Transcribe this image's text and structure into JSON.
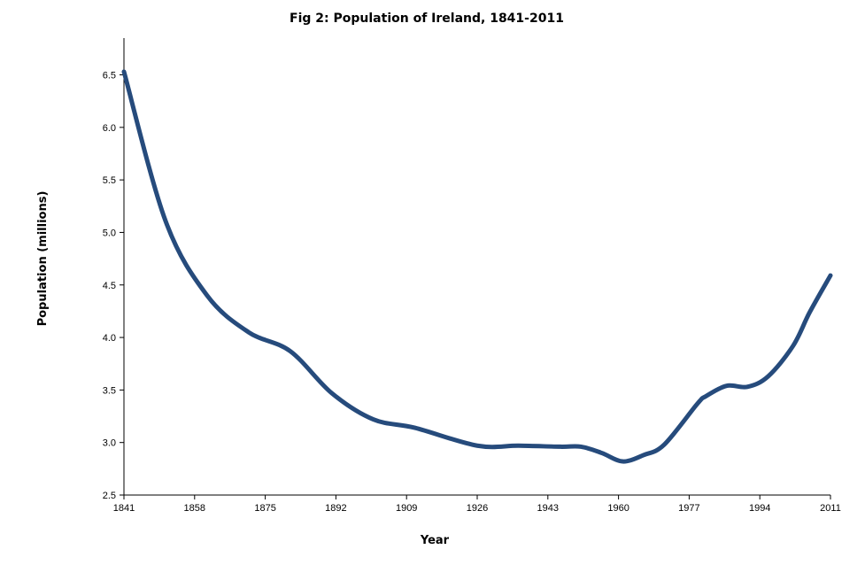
{
  "chart_data": {
    "type": "line",
    "title": "Fig 2:  Population of Ireland, 1841-2011",
    "xlabel": "Year",
    "ylabel": "Population (millions)",
    "xlim": [
      1841,
      2011
    ],
    "ylim": [
      2.5,
      6.85
    ],
    "x_ticks": [
      1841,
      1858,
      1875,
      1892,
      1909,
      1926,
      1943,
      1960,
      1977,
      1994,
      2011
    ],
    "x_tick_labels": [
      "1841",
      "1858",
      "1875",
      "1892",
      "1909",
      "1926",
      "1943",
      "1960",
      "1977",
      "1994",
      "2011"
    ],
    "y_ticks": [
      2.5,
      3.0,
      3.5,
      4.0,
      4.5,
      5.0,
      5.5,
      6.0,
      6.5
    ],
    "y_tick_labels": [
      "2.5",
      "3.0",
      "3.5",
      "4.0",
      "4.5",
      "5.0",
      "5.5",
      "6.0",
      "6.5"
    ],
    "grid": false,
    "legend": "none",
    "line_color": "#264b7c",
    "series": [
      {
        "x": [
          1841,
          1851,
          1861,
          1871,
          1881,
          1891,
          1901,
          1911,
          1926,
          1936,
          1946,
          1951,
          1956,
          1961,
          1966,
          1971,
          1979,
          1981,
          1986,
          1991,
          1996,
          2002,
          2006,
          2011
        ],
        "values": [
          6.53,
          5.11,
          4.4,
          4.05,
          3.87,
          3.47,
          3.22,
          3.14,
          2.97,
          2.97,
          2.96,
          2.96,
          2.9,
          2.82,
          2.88,
          2.98,
          3.37,
          3.44,
          3.54,
          3.53,
          3.63,
          3.92,
          4.24,
          4.59
        ]
      }
    ]
  }
}
